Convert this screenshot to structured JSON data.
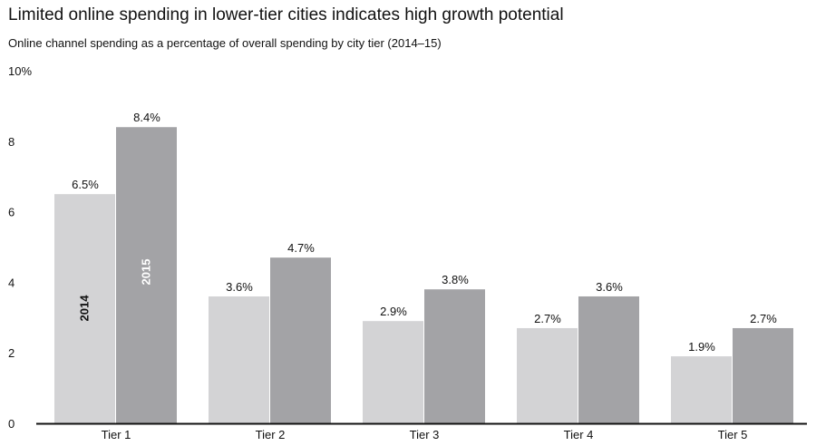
{
  "chart_data": {
    "type": "bar",
    "title": "Limited online spending in lower-tier cities indicates high growth potential",
    "subtitle": "Online channel spending as a percentage of overall spending by city tier (2014–15)",
    "categories": [
      "Tier 1",
      "Tier 2",
      "Tier 3",
      "Tier 4",
      "Tier 5"
    ],
    "series": [
      {
        "name": "2014",
        "values": [
          6.5,
          3.6,
          2.9,
          2.7,
          1.9
        ],
        "labels": [
          "6.5%",
          "3.6%",
          "2.9%",
          "2.7%",
          "1.9%"
        ],
        "color": "#d3d3d5"
      },
      {
        "name": "2015",
        "values": [
          8.4,
          4.7,
          3.8,
          3.6,
          2.7
        ],
        "labels": [
          "8.4%",
          "4.7%",
          "3.8%",
          "3.6%",
          "2.7%"
        ],
        "color": "#a3a3a6"
      }
    ],
    "ylim": [
      0,
      10
    ],
    "yticks": [
      0,
      2,
      4,
      6,
      8,
      10
    ],
    "ytick_labels": [
      "0",
      "2",
      "4",
      "6",
      "8",
      "10%"
    ],
    "grid": false,
    "legend": "in-bar labels on first category"
  }
}
